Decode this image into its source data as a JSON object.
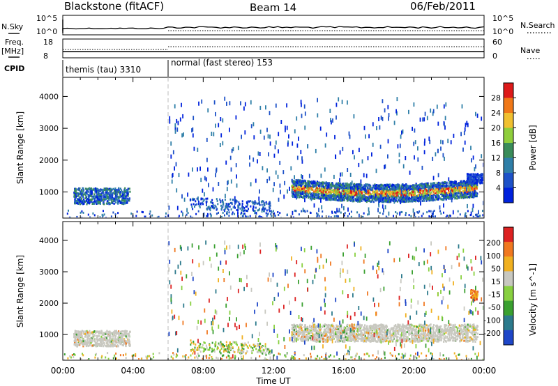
{
  "header": {
    "radar": "Blackstone (fitACF)",
    "beam": "Beam 14",
    "date": "06/Feb/2011"
  },
  "strip_labels": {
    "nsky": "N.Sky",
    "nsearch": "N.Search",
    "freq_top": "Freq.",
    "freq_unit": "[MHz]",
    "nave": "Nave",
    "cpid": "CPID",
    "nsky_ticks": [
      "10^5",
      "10^0"
    ],
    "nsearch_ticks": [
      "10^5",
      "10^0"
    ],
    "freq_ticks": [
      "18",
      "8"
    ],
    "nave_ticks": [
      "60",
      "0"
    ]
  },
  "cpid": [
    {
      "label": "themis (tau) 3310",
      "start_hour": 0
    },
    {
      "label": "normal (fast stereo) 153",
      "start_hour": 6
    }
  ],
  "chart_data": [
    {
      "type": "heatmap",
      "panel": "power",
      "ylabel": "Slant Range [km]",
      "y_ticks": [
        "1000",
        "2000",
        "3000",
        "4000"
      ],
      "ylim": [
        180,
        4600
      ],
      "xlim": [
        0,
        24
      ],
      "colorbar": {
        "label": "Power [dB]",
        "ticks": [
          "4",
          "8",
          "12",
          "16",
          "20",
          "24",
          "28"
        ],
        "colors": [
          "#0022dd",
          "#1e52c8",
          "#2f7fa8",
          "#3a8c5a",
          "#8fce3c",
          "#f0c030",
          "#f07818",
          "#dd1a1a"
        ]
      },
      "features": [
        {
          "x_start": 0.6,
          "x_end": 3.8,
          "range_start": 650,
          "range_end": 1150,
          "level": "moderate"
        },
        {
          "x_start": 13.0,
          "x_end": 23.6,
          "range_start": 800,
          "range_end": 1350,
          "level": "strong"
        },
        {
          "x_start": 23.0,
          "x_end": 24.0,
          "range_start": 1300,
          "range_end": 1600,
          "level": "weak"
        }
      ]
    },
    {
      "type": "heatmap",
      "panel": "velocity",
      "ylabel": "Slant Range [km]",
      "y_ticks": [
        "1000",
        "2000",
        "3000",
        "4000"
      ],
      "ylim": [
        180,
        4600
      ],
      "xlim": [
        0,
        24
      ],
      "xlabel": "Time UT",
      "x_ticks": [
        "00:00",
        "04:00",
        "08:00",
        "12:00",
        "16:00",
        "20:00",
        "00:00"
      ],
      "colorbar": {
        "label": "Velocity [m s^-1]",
        "ticks": [
          "200",
          "100",
          "50",
          "15",
          "-15",
          "-50",
          "-100",
          "-200"
        ],
        "colors": [
          "#1e46c8",
          "#2c7a8c",
          "#3aa030",
          "#88d040",
          "#c8c8c0",
          "#f0b020",
          "#f07820",
          "#dd2222"
        ]
      },
      "features": [
        {
          "x_start": 0.6,
          "x_end": 3.8,
          "range_start": 650,
          "range_end": 1150,
          "level": "near-zero"
        },
        {
          "x_start": 13.0,
          "x_end": 23.6,
          "range_start": 800,
          "range_end": 1350,
          "level": "near-zero"
        },
        {
          "x_start": 23.2,
          "x_end": 23.6,
          "range_start": 2100,
          "range_end": 2450,
          "level": "negative"
        }
      ]
    }
  ]
}
